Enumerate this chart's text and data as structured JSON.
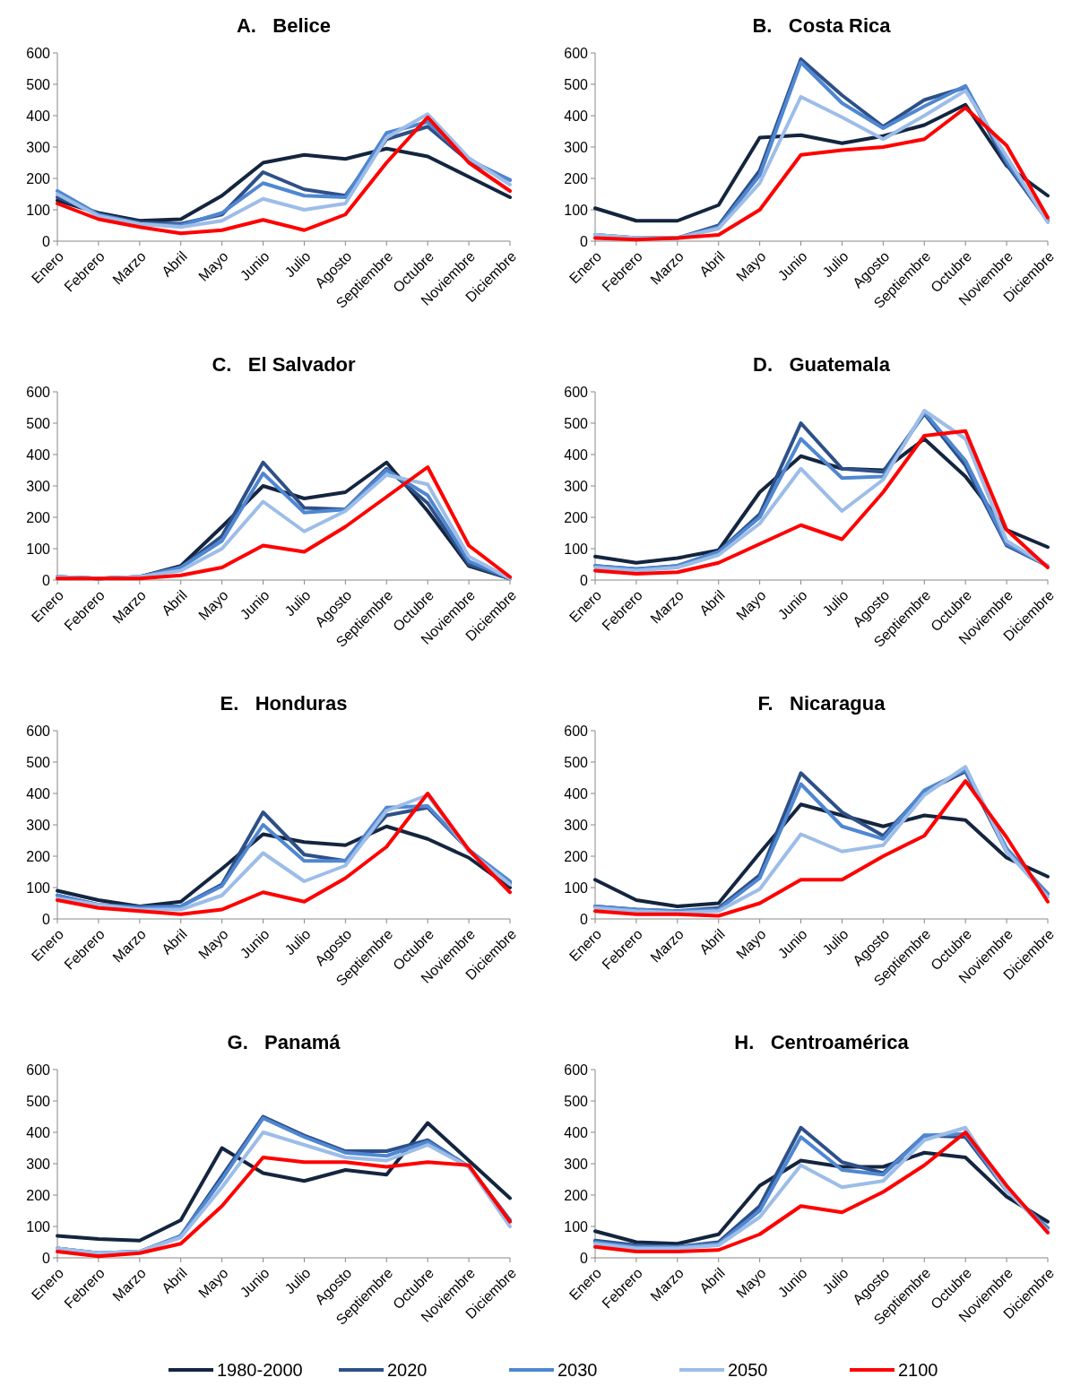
{
  "chart_data": [
    {
      "type": "line",
      "title": "A.   Belice",
      "categories": [
        "Enero",
        "Febrero",
        "Marzo",
        "Abril",
        "Mayo",
        "Junio",
        "Julio",
        "Agosto",
        "Septiembre",
        "Octubre",
        "Noviembre",
        "Diciembre"
      ],
      "ylim": [
        0,
        600
      ],
      "yticks": [
        0,
        100,
        200,
        300,
        400,
        500,
        600
      ],
      "series": [
        {
          "color": "#14253f",
          "values": [
            130,
            90,
            65,
            70,
            145,
            250,
            275,
            262,
            295,
            270,
            205,
            140
          ]
        },
        {
          "color": "#2e5088",
          "values": [
            140,
            85,
            60,
            55,
            85,
            220,
            165,
            145,
            325,
            365,
            255,
            195
          ]
        },
        {
          "color": "#4f87d2",
          "values": [
            160,
            85,
            55,
            50,
            90,
            185,
            145,
            140,
            345,
            380,
            260,
            195
          ]
        },
        {
          "color": "#9dbde8",
          "values": [
            150,
            80,
            55,
            45,
            65,
            135,
            100,
            120,
            330,
            405,
            265,
            180
          ]
        },
        {
          "color": "#ff0000",
          "values": [
            120,
            70,
            45,
            25,
            35,
            68,
            35,
            85,
            250,
            395,
            250,
            160
          ]
        }
      ]
    },
    {
      "type": "line",
      "title": "B.   Costa Rica",
      "categories": [
        "Enero",
        "Febrero",
        "Marzo",
        "Abril",
        "Mayo",
        "Junio",
        "Julio",
        "Agosto",
        "Septiembre",
        "Octubre",
        "Noviembre",
        "Diciembre"
      ],
      "ylim": [
        0,
        600
      ],
      "yticks": [
        0,
        100,
        200,
        300,
        400,
        500,
        600
      ],
      "series": [
        {
          "color": "#14253f",
          "values": [
            105,
            65,
            65,
            115,
            330,
            338,
            312,
            335,
            370,
            435,
            240,
            145
          ]
        },
        {
          "color": "#2e5088",
          "values": [
            20,
            10,
            10,
            50,
            225,
            580,
            465,
            365,
            450,
            490,
            245,
            65
          ]
        },
        {
          "color": "#4f87d2",
          "values": [
            20,
            10,
            10,
            45,
            210,
            570,
            440,
            360,
            430,
            495,
            255,
            65
          ]
        },
        {
          "color": "#9dbde8",
          "values": [
            20,
            10,
            10,
            40,
            185,
            460,
            395,
            325,
            400,
            480,
            270,
            60
          ]
        },
        {
          "color": "#ff0000",
          "values": [
            10,
            5,
            10,
            20,
            100,
            275,
            290,
            300,
            325,
            425,
            305,
            75
          ]
        }
      ]
    },
    {
      "type": "line",
      "title": "C.   El Salvador",
      "categories": [
        "Enero",
        "Febrero",
        "Marzo",
        "Abril",
        "Mayo",
        "Junio",
        "Julio",
        "Agosto",
        "Septiembre",
        "Octubre",
        "Noviembre",
        "Diciembre"
      ],
      "ylim": [
        0,
        600
      ],
      "yticks": [
        0,
        100,
        200,
        300,
        400,
        500,
        600
      ],
      "series": [
        {
          "color": "#14253f",
          "values": [
            10,
            5,
            10,
            45,
            170,
            300,
            260,
            280,
            375,
            220,
            45,
            5
          ]
        },
        {
          "color": "#2e5088",
          "values": [
            10,
            5,
            10,
            40,
            140,
            375,
            230,
            225,
            355,
            245,
            50,
            5
          ]
        },
        {
          "color": "#4f87d2",
          "values": [
            10,
            5,
            10,
            40,
            125,
            340,
            215,
            225,
            350,
            270,
            60,
            5
          ]
        },
        {
          "color": "#9dbde8",
          "values": [
            10,
            5,
            10,
            30,
            100,
            250,
            155,
            220,
            335,
            305,
            75,
            5
          ]
        },
        {
          "color": "#ff0000",
          "values": [
            5,
            5,
            5,
            15,
            40,
            110,
            90,
            170,
            265,
            360,
            110,
            10
          ]
        }
      ]
    },
    {
      "type": "line",
      "title": "D.   Guatemala",
      "categories": [
        "Enero",
        "Febrero",
        "Marzo",
        "Abril",
        "Mayo",
        "Junio",
        "Julio",
        "Agosto",
        "Septiembre",
        "Octubre",
        "Noviembre",
        "Diciembre"
      ],
      "ylim": [
        0,
        600
      ],
      "yticks": [
        0,
        100,
        200,
        300,
        400,
        500,
        600
      ],
      "series": [
        {
          "color": "#14253f",
          "values": [
            75,
            55,
            70,
            95,
            280,
            395,
            355,
            350,
            450,
            330,
            160,
            105
          ]
        },
        {
          "color": "#2e5088",
          "values": [
            45,
            35,
            45,
            90,
            210,
            500,
            355,
            345,
            530,
            365,
            110,
            45
          ]
        },
        {
          "color": "#4f87d2",
          "values": [
            45,
            35,
            45,
            90,
            200,
            450,
            325,
            330,
            535,
            380,
            115,
            45
          ]
        },
        {
          "color": "#9dbde8",
          "values": [
            40,
            30,
            40,
            80,
            180,
            355,
            220,
            320,
            540,
            450,
            125,
            45
          ]
        },
        {
          "color": "#ff0000",
          "values": [
            30,
            20,
            25,
            55,
            115,
            175,
            130,
            280,
            460,
            475,
            160,
            40
          ]
        }
      ]
    },
    {
      "type": "line",
      "title": "E.   Honduras",
      "categories": [
        "Enero",
        "Febrero",
        "Marzo",
        "Abril",
        "Mayo",
        "Junio",
        "Julio",
        "Agosto",
        "Septiembre",
        "Octubre",
        "Noviembre",
        "Diciembre"
      ],
      "ylim": [
        0,
        600
      ],
      "yticks": [
        0,
        100,
        200,
        300,
        400,
        500,
        600
      ],
      "series": [
        {
          "color": "#14253f",
          "values": [
            90,
            60,
            40,
            55,
            160,
            270,
            245,
            235,
            295,
            255,
            195,
            100
          ]
        },
        {
          "color": "#2e5088",
          "values": [
            75,
            45,
            40,
            40,
            110,
            340,
            205,
            185,
            330,
            355,
            220,
            115
          ]
        },
        {
          "color": "#4f87d2",
          "values": [
            75,
            45,
            35,
            40,
            105,
            300,
            185,
            185,
            355,
            360,
            220,
            120
          ]
        },
        {
          "color": "#9dbde8",
          "values": [
            65,
            45,
            30,
            30,
            75,
            210,
            120,
            170,
            345,
            395,
            215,
            110
          ]
        },
        {
          "color": "#ff0000",
          "values": [
            60,
            35,
            25,
            15,
            30,
            85,
            55,
            130,
            230,
            400,
            220,
            85
          ]
        }
      ]
    },
    {
      "type": "line",
      "title": "F.   Nicaragua",
      "categories": [
        "Enero",
        "Febrero",
        "Marzo",
        "Abril",
        "Mayo",
        "Junio",
        "Julio",
        "Agosto",
        "Septiembre",
        "Octubre",
        "Noviembre",
        "Diciembre"
      ],
      "ylim": [
        0,
        600
      ],
      "yticks": [
        0,
        100,
        200,
        300,
        400,
        500,
        600
      ],
      "series": [
        {
          "color": "#14253f",
          "values": [
            125,
            60,
            40,
            50,
            210,
            365,
            330,
            295,
            330,
            315,
            195,
            135
          ]
        },
        {
          "color": "#2e5088",
          "values": [
            40,
            30,
            25,
            35,
            140,
            465,
            340,
            265,
            405,
            470,
            215,
            80
          ]
        },
        {
          "color": "#4f87d2",
          "values": [
            40,
            30,
            25,
            30,
            130,
            430,
            295,
            255,
            410,
            475,
            225,
            80
          ]
        },
        {
          "color": "#9dbde8",
          "values": [
            35,
            25,
            20,
            25,
            95,
            270,
            215,
            235,
            395,
            485,
            215,
            70
          ]
        },
        {
          "color": "#ff0000",
          "values": [
            25,
            15,
            15,
            10,
            50,
            125,
            125,
            200,
            265,
            440,
            260,
            55
          ]
        }
      ]
    },
    {
      "type": "line",
      "title": "G.   Panamá",
      "categories": [
        "Enero",
        "Febrero",
        "Marzo",
        "Abril",
        "Mayo",
        "Junio",
        "Julio",
        "Agosto",
        "Septiembre",
        "Octubre",
        "Noviembre",
        "Diciembre"
      ],
      "ylim": [
        0,
        600
      ],
      "yticks": [
        0,
        100,
        200,
        300,
        400,
        500,
        600
      ],
      "series": [
        {
          "color": "#14253f",
          "values": [
            70,
            60,
            55,
            120,
            350,
            270,
            245,
            280,
            265,
            430,
            310,
            190
          ]
        },
        {
          "color": "#2e5088",
          "values": [
            30,
            15,
            20,
            70,
            260,
            450,
            390,
            340,
            340,
            375,
            290,
            120
          ]
        },
        {
          "color": "#4f87d2",
          "values": [
            30,
            15,
            20,
            70,
            250,
            445,
            385,
            335,
            325,
            370,
            290,
            120
          ]
        },
        {
          "color": "#9dbde8",
          "values": [
            30,
            15,
            20,
            65,
            225,
            400,
            360,
            320,
            310,
            360,
            290,
            100
          ]
        },
        {
          "color": "#ff0000",
          "values": [
            20,
            5,
            15,
            45,
            165,
            320,
            305,
            305,
            290,
            305,
            295,
            115
          ]
        }
      ]
    },
    {
      "type": "line",
      "title": "H.   Centroamérica",
      "categories": [
        "Enero",
        "Febrero",
        "Marzo",
        "Abril",
        "Mayo",
        "Junio",
        "Julio",
        "Agosto",
        "Septiembre",
        "Octubre",
        "Noviembre",
        "Diciembre"
      ],
      "ylim": [
        0,
        600
      ],
      "yticks": [
        0,
        100,
        200,
        300,
        400,
        500,
        600
      ],
      "legend": "bottom",
      "series": [
        {
          "name": "1980-2000",
          "color": "#14253f",
          "values": [
            85,
            50,
            45,
            75,
            230,
            310,
            290,
            290,
            335,
            320,
            195,
            115
          ]
        },
        {
          "name": "2020",
          "color": "#2e5088",
          "values": [
            55,
            40,
            35,
            50,
            165,
            415,
            305,
            270,
            390,
            385,
            215,
            95
          ]
        },
        {
          "name": "2030",
          "color": "#4f87d2",
          "values": [
            50,
            35,
            35,
            45,
            150,
            385,
            280,
            265,
            390,
            395,
            215,
            95
          ]
        },
        {
          "name": "2050",
          "color": "#9dbde8",
          "values": [
            45,
            30,
            30,
            40,
            130,
            295,
            225,
            245,
            375,
            415,
            215,
            85
          ]
        },
        {
          "name": "2100",
          "color": "#ff0000",
          "values": [
            35,
            20,
            20,
            25,
            75,
            165,
            145,
            210,
            295,
            400,
            230,
            80
          ]
        }
      ]
    }
  ]
}
